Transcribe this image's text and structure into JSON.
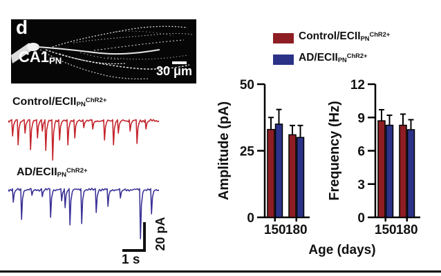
{
  "panel": {
    "label": "d"
  },
  "micrograph": {
    "region_label": {
      "main": "CA1",
      "sub": "PN"
    },
    "scale_bar": {
      "label": "30 μm"
    }
  },
  "traces": {
    "control": {
      "label": {
        "main": "Control/ECII",
        "sub": "PN",
        "sup": "ChR2+"
      },
      "color": "#C4242B",
      "baseline": 9,
      "spikes": [
        [
          5,
          22
        ],
        [
          13,
          35
        ],
        [
          23,
          18
        ],
        [
          31,
          42
        ],
        [
          41,
          25
        ],
        [
          48,
          15
        ],
        [
          53,
          43
        ],
        [
          63,
          57
        ],
        [
          73,
          28
        ],
        [
          85,
          35
        ],
        [
          95,
          25
        ],
        [
          108,
          10
        ],
        [
          121,
          12
        ],
        [
          138,
          28
        ],
        [
          151,
          35
        ],
        [
          158,
          18
        ],
        [
          175,
          15
        ],
        [
          185,
          33
        ],
        [
          198,
          12
        ]
      ]
    },
    "ad": {
      "label": {
        "main": "AD/ECII",
        "sub": "PN",
        "sup": "ChR2+"
      },
      "color": "#3C3296",
      "baseline": 9,
      "spikes": [
        [
          6,
          18
        ],
        [
          18,
          43
        ],
        [
          33,
          8
        ],
        [
          48,
          10
        ],
        [
          60,
          40
        ],
        [
          76,
          16
        ],
        [
          81,
          26
        ],
        [
          88,
          51
        ],
        [
          105,
          49
        ],
        [
          126,
          33
        ],
        [
          143,
          24
        ],
        [
          161,
          12
        ],
        [
          190,
          71
        ],
        [
          206,
          35
        ]
      ]
    }
  },
  "trace_scale": {
    "vertical_label": "20 pA",
    "horizontal_label": "1 s"
  },
  "legend": {
    "items": [
      {
        "label": {
          "main": "Control/ECII",
          "sub": "PN",
          "sup": "ChR2+"
        },
        "color": "#8E1E23"
      },
      {
        "label": {
          "main": "AD/ECII",
          "sub": "PN",
          "sup": "ChR2+"
        },
        "color": "#2B3287"
      }
    ]
  },
  "chart_data": [
    {
      "type": "bar",
      "ylabel": "Amplitude (pA)",
      "xlabel": "Age (days)",
      "categories": [
        "150",
        "180"
      ],
      "series": [
        {
          "name": "Control/ECII_PN^ChR2+",
          "color": "#8E1E23",
          "values": [
            33,
            31
          ],
          "errors": [
            4.5,
            3.5
          ]
        },
        {
          "name": "AD/ECII_PN^ChR2+",
          "color": "#2B3287",
          "values": [
            35,
            30
          ],
          "errors": [
            5.5,
            4.5
          ]
        }
      ],
      "ylim": [
        0,
        50
      ],
      "yticks": [
        0,
        25,
        50
      ],
      "grid": false,
      "legend_position": "top"
    },
    {
      "type": "bar",
      "ylabel": "Frequency (Hz)",
      "xlabel": "Age (days)",
      "categories": [
        "150",
        "180"
      ],
      "series": [
        {
          "name": "Control/ECII_PN^ChR2+",
          "color": "#8E1E23",
          "values": [
            8.7,
            8.3
          ],
          "errors": [
            1.0,
            1.0
          ]
        },
        {
          "name": "AD/ECII_PN^ChR2+",
          "color": "#2B3287",
          "values": [
            8.3,
            7.9
          ],
          "errors": [
            0.9,
            0.9
          ]
        }
      ],
      "ylim": [
        0,
        12
      ],
      "yticks": [
        0,
        3,
        6,
        9,
        12
      ],
      "grid": false,
      "legend_position": "top"
    }
  ]
}
